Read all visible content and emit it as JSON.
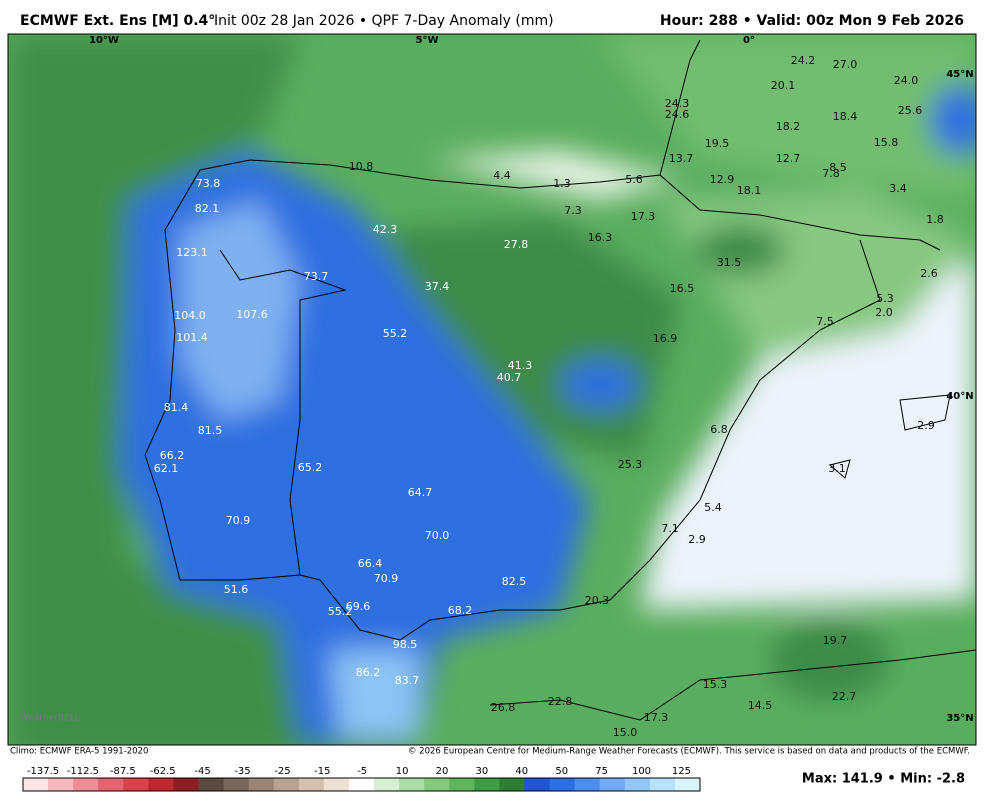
{
  "header": {
    "title": "ECMWF Ext. Ens [M] 0.4°",
    "subtitle": "Init 00z 28 Jan 2026 • QPF 7-Day Anomaly (mm)",
    "valid": "Hour: 288 • Valid: 00z Mon 9 Feb 2026"
  },
  "map": {
    "lon_labels": [
      "10°W",
      "5°W",
      "0°"
    ],
    "lat_labels": [
      "45°N",
      "40°N",
      "35°N"
    ],
    "values": [
      "73.8",
      "82.1",
      "123.1",
      "73.7",
      "104.0",
      "107.6",
      "101.4",
      "81.4",
      "81.5",
      "66.2",
      "62.1",
      "65.2",
      "64.7",
      "70.9",
      "70.0",
      "66.4",
      "70.9",
      "82.5",
      "51.6",
      "69.6",
      "68.2",
      "55.2",
      "98.5",
      "86.2",
      "83.7",
      "55.2",
      "42.3",
      "37.4",
      "27.8",
      "41.3",
      "40.7",
      "10.8",
      "4.4",
      "1.3",
      "5.6",
      "7.3",
      "16.3",
      "17.3",
      "31.5",
      "16.5",
      "16.9",
      "6.8",
      "25.3",
      "5.4",
      "7.1",
      "2.9",
      "20.3",
      "24.3",
      "24.6",
      "24.2",
      "27.0",
      "20.1",
      "24.0",
      "25.6",
      "18.2",
      "18.4",
      "19.5",
      "15.8",
      "13.7",
      "12.7",
      "8.5",
      "7.8",
      "12.9",
      "18.1",
      "3.4",
      "1.8",
      "2.6",
      "5.3",
      "2.0",
      "7.5",
      "2.9",
      "3.1",
      "19.7",
      "22.7",
      "15.3",
      "14.5",
      "17.3",
      "26.8",
      "22.8",
      "15.0"
    ],
    "logo": "WeatherBELL"
  },
  "footer": {
    "climo": "Climo: ECMWF ERA-5 1991-2020",
    "copyright": "© 2026 European Centre for Medium-Range Weather Forecasts (ECMWF). This service is based on data and products of the ECMWF.",
    "maxmin": "Max: 141.9 • Min: -2.8"
  },
  "colorbar": {
    "labels": [
      "-137.5",
      "-112.5",
      "-87.5",
      "-62.5",
      "-45",
      "-35",
      "-25",
      "-15",
      "-5",
      "10",
      "20",
      "30",
      "40",
      "50",
      "75",
      "100",
      "125"
    ]
  }
}
